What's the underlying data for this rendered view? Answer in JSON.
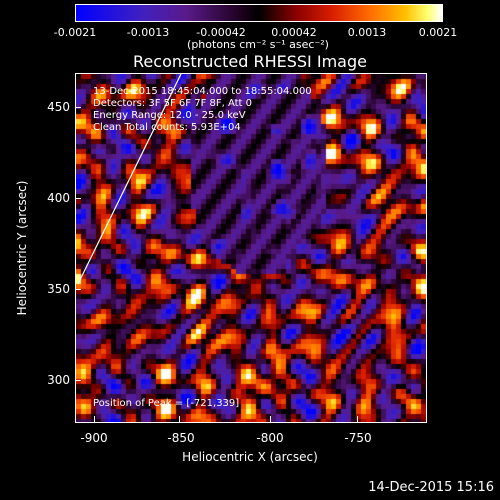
{
  "colorbar": {
    "tick_labels": [
      "-0.0021",
      "-0.0013",
      "-0.00042",
      "0.00042",
      "0.0013",
      "0.0021"
    ],
    "unit_label": "(photons cm⁻² s⁻¹ asec⁻²)"
  },
  "title": "Reconstructed RHESSI Image",
  "info": {
    "time_range": "13-Dec-2015 18:45:04.000 to 18:55:04.000",
    "detectors": "Detectors: 3F 5F 6F 7F 8F, Att 0",
    "energy": "Energy Range: 12.0 - 25.0 keV",
    "algorithm": "Clean    Total counts: 5.93E+04"
  },
  "peak_label": "Position of Peak = [-721,339]",
  "axes": {
    "xlabel": "Heliocentric X (arcsec)",
    "ylabel": "Heliocentric Y (arcsec)",
    "x_ticks": [
      "-900",
      "-850",
      "-800",
      "-750"
    ],
    "y_ticks": [
      "300",
      "350",
      "400",
      "450"
    ]
  },
  "timestamp": "14-Dec-2015 15:16",
  "chart_data": {
    "type": "heatmap",
    "title": "Reconstructed RHESSI Image",
    "xlabel": "Heliocentric X (arcsec)",
    "ylabel": "Heliocentric Y (arcsec)",
    "xlim": [
      -910,
      -718
    ],
    "ylim": [
      275,
      470
    ],
    "value_range": [
      -0.0021,
      0.0021
    ],
    "peak": [
      -721,
      339
    ],
    "colors": {
      "min": "#0000ff",
      "mid": "#000000",
      "max": "#ffffff",
      "limb": "#ffffff"
    }
  }
}
